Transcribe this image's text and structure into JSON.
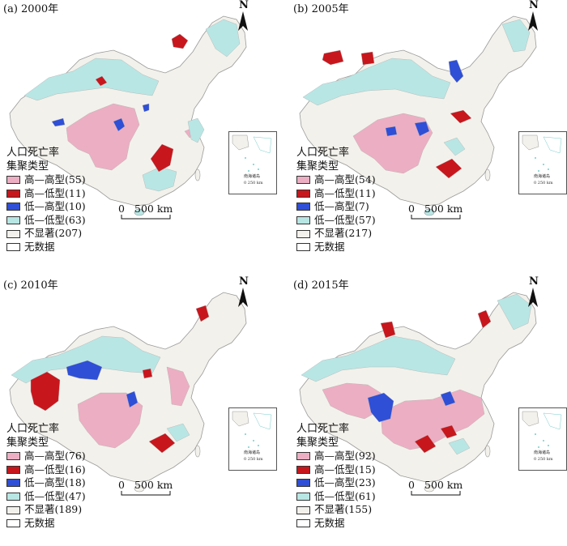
{
  "map_title_fallback": "",
  "colors": {
    "high_high": "#ecaec3",
    "high_low": "#c8161d",
    "low_high": "#2e4fd6",
    "low_low": "#b8e6e4",
    "not_significant": "#f3f1eb",
    "no_data": "#ffffff",
    "border": "#9a9a9a"
  },
  "icons": {
    "north": "north-arrow-icon"
  },
  "common": {
    "legend_title_line1": "人口死亡率",
    "legend_title_line2": "集聚类型",
    "north_label": "N",
    "scale_label": "0 ⎯⎯ 500 km",
    "scale_zero": "0",
    "scale_dist": "500 km",
    "inset_label": "南海诸岛",
    "inset_scale": "0 250 km"
  },
  "panels": [
    {
      "title": "(a) 2000年",
      "legend": [
        "高—高型(55)",
        "高—低型(11)",
        "低—高型(10)",
        "低—低型(63)",
        "不显著(207)",
        "无数据"
      ]
    },
    {
      "title": "(b) 2005年",
      "legend": [
        "高—高型(54)",
        "高—低型(11)",
        "低—高型(7)",
        "低—低型(57)",
        "不显著(217)",
        "无数据"
      ]
    },
    {
      "title": "(c) 2010年",
      "legend": [
        "高—高型(76)",
        "高—低型(16)",
        "低—高型(18)",
        "低—低型(47)",
        "不显著(189)",
        "无数据"
      ]
    },
    {
      "title": "(d) 2015年",
      "legend": [
        "高—高型(92)",
        "高—低型(15)",
        "低—高型(23)",
        "低—低型(61)",
        "不显著(155)",
        "无数据"
      ]
    }
  ]
}
